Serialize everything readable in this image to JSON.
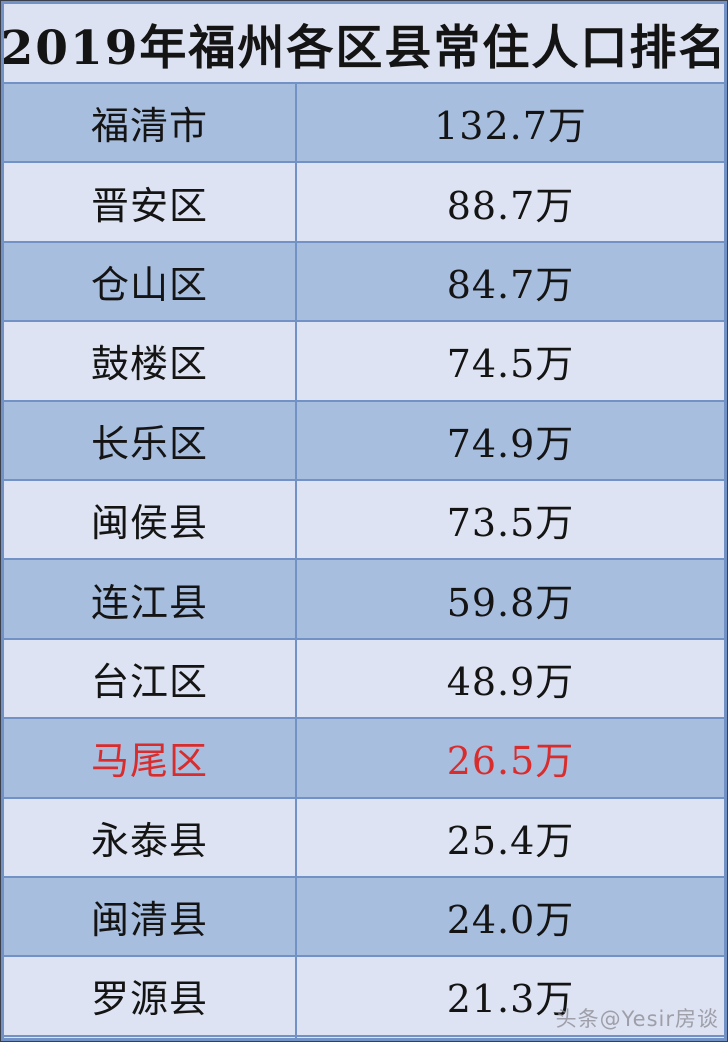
{
  "title": "2019年福州各区县常住人口排名",
  "watermark": "头条@Yesir房谈",
  "colors": {
    "row_dark_bg": "#a8bedf",
    "row_light_bg": "#dde3f2",
    "grid_line": "#7291c4",
    "title_bg": "#dce2f1",
    "text": "#141414",
    "highlight_text": "#d92c2c",
    "watermark_text": "#8f8f96"
  },
  "chart_data": {
    "type": "table",
    "title": "2019年福州各区县常住人口排名",
    "rows": [
      {
        "name": "福清市",
        "population": "132.7万",
        "value": 132.7,
        "highlight": false
      },
      {
        "name": "晋安区",
        "population": "88.7万",
        "value": 88.7,
        "highlight": false
      },
      {
        "name": "仓山区",
        "population": "84.7万",
        "value": 84.7,
        "highlight": false
      },
      {
        "name": "鼓楼区",
        "population": "74.5万",
        "value": 74.5,
        "highlight": false
      },
      {
        "name": "长乐区",
        "population": "74.9万",
        "value": 74.9,
        "highlight": false
      },
      {
        "name": "闽侯县",
        "population": "73.5万",
        "value": 73.5,
        "highlight": false
      },
      {
        "name": "连江县",
        "population": "59.8万",
        "value": 59.8,
        "highlight": false
      },
      {
        "name": "台江区",
        "population": "48.9万",
        "value": 48.9,
        "highlight": false
      },
      {
        "name": "马尾区",
        "population": "26.5万",
        "value": 26.5,
        "highlight": true
      },
      {
        "name": "永泰县",
        "population": "25.4万",
        "value": 25.4,
        "highlight": false
      },
      {
        "name": "闽清县",
        "population": "24.0万",
        "value": 24.0,
        "highlight": false
      },
      {
        "name": "罗源县",
        "population": "21.3万",
        "value": 21.3,
        "highlight": false
      }
    ]
  }
}
